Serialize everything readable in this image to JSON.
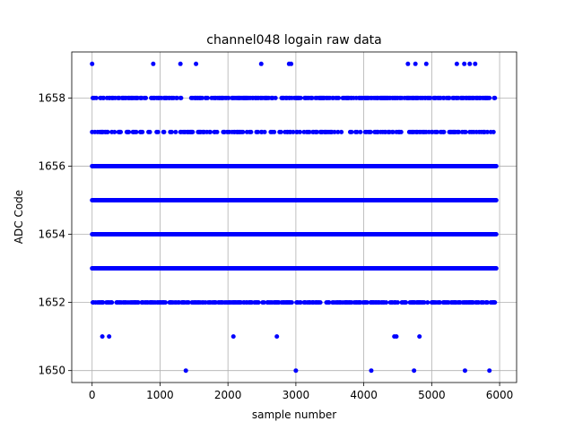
{
  "chart_data": {
    "type": "scatter",
    "title": "channel048 logain raw data",
    "xlabel": "sample number",
    "ylabel": "ADC Code",
    "xlim": [
      -300,
      6250
    ],
    "ylim": [
      1649.65,
      1659.35
    ],
    "xticks": [
      0,
      1000,
      2000,
      3000,
      4000,
      5000,
      6000
    ],
    "yticks": [
      1650,
      1652,
      1654,
      1656,
      1658
    ],
    "grid": true,
    "marker_color": "#0000ff",
    "x_range": [
      0,
      5950
    ],
    "dense_levels": [
      {
        "y": 1653,
        "density": 1.0
      },
      {
        "y": 1654,
        "density": 1.0
      },
      {
        "y": 1655,
        "density": 1.0
      },
      {
        "y": 1656,
        "density": 1.0
      },
      {
        "y": 1652,
        "density": 0.55
      },
      {
        "y": 1657,
        "density": 0.35
      },
      {
        "y": 1658,
        "density": 0.55
      }
    ],
    "sparse_points": [
      {
        "x": 0,
        "y": 1659
      },
      {
        "x": 900,
        "y": 1659
      },
      {
        "x": 1300,
        "y": 1659
      },
      {
        "x": 1530,
        "y": 1659
      },
      {
        "x": 2490,
        "y": 1659
      },
      {
        "x": 2900,
        "y": 1659
      },
      {
        "x": 2930,
        "y": 1659
      },
      {
        "x": 4650,
        "y": 1659
      },
      {
        "x": 4760,
        "y": 1659
      },
      {
        "x": 4920,
        "y": 1659
      },
      {
        "x": 5370,
        "y": 1659
      },
      {
        "x": 5480,
        "y": 1659
      },
      {
        "x": 5560,
        "y": 1659
      },
      {
        "x": 5640,
        "y": 1659
      },
      {
        "x": 150,
        "y": 1651
      },
      {
        "x": 250,
        "y": 1651
      },
      {
        "x": 2080,
        "y": 1651
      },
      {
        "x": 2720,
        "y": 1651
      },
      {
        "x": 4450,
        "y": 1651
      },
      {
        "x": 4480,
        "y": 1651
      },
      {
        "x": 4820,
        "y": 1651
      },
      {
        "x": 1380,
        "y": 1650
      },
      {
        "x": 3000,
        "y": 1650
      },
      {
        "x": 4110,
        "y": 1650
      },
      {
        "x": 4740,
        "y": 1650
      },
      {
        "x": 5490,
        "y": 1650
      },
      {
        "x": 5850,
        "y": 1650
      }
    ]
  }
}
